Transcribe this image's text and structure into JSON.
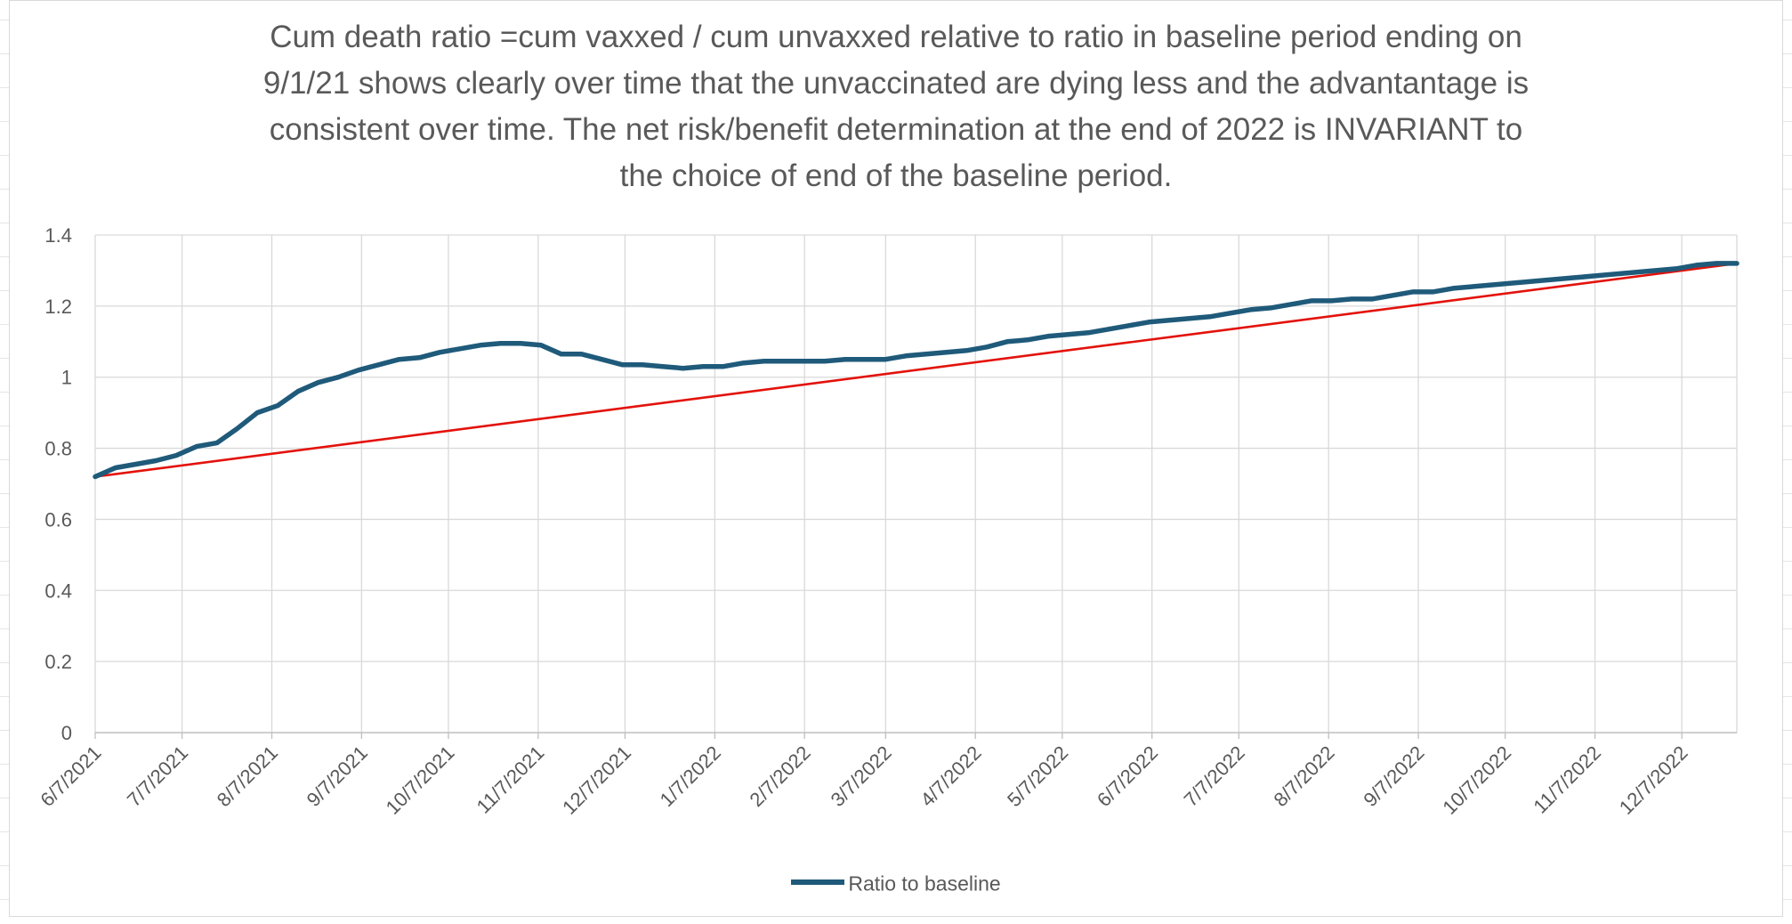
{
  "chart_data": {
    "type": "line",
    "title": "Cum death ratio =cum vaxxed / cum unvaxxed relative to ratio in baseline period ending on 9/1/21 shows clearly over time that the unvaccinated are dying less and the advantantage is consistent over time. The net risk/benefit determination at the end of 2022 is INVARIANT to the choice of end of the baseline period.",
    "title_lines": [
      "Cum death ratio =cum vaxxed / cum unvaxxed relative to ratio in baseline period ending on",
      "9/1/21 shows clearly over time that the unvaccinated are dying less and the advantantage is",
      "consistent over time. The net risk/benefit determination at the end of 2022 is INVARIANT to",
      "the choice of end of the baseline period."
    ],
    "xlabel": "",
    "ylabel": "",
    "ylim": [
      0,
      1.4
    ],
    "y_ticks": [
      "0",
      "0.2",
      "0.4",
      "0.6",
      "0.8",
      "1",
      "1.2",
      "1.4"
    ],
    "y_tick_values": [
      0,
      0.2,
      0.4,
      0.6,
      0.8,
      1.0,
      1.2,
      1.4
    ],
    "x_range": [
      "2021-06-07",
      "2022-12-26"
    ],
    "x_ticks": [
      "6/7/2021",
      "7/7/2021",
      "8/7/2021",
      "9/7/2021",
      "10/7/2021",
      "11/7/2021",
      "12/7/2021",
      "1/7/2022",
      "2/7/2022",
      "3/7/2022",
      "4/7/2022",
      "5/7/2022",
      "6/7/2022",
      "7/7/2022",
      "8/7/2022",
      "9/7/2022",
      "10/7/2022",
      "11/7/2022",
      "12/7/2022"
    ],
    "x_tick_dates": [
      "2021-06-07",
      "2021-07-07",
      "2021-08-07",
      "2021-09-07",
      "2021-10-07",
      "2021-11-07",
      "2021-12-07",
      "2022-01-07",
      "2022-02-07",
      "2022-03-07",
      "2022-04-07",
      "2022-05-07",
      "2022-06-07",
      "2022-07-07",
      "2022-08-07",
      "2022-09-07",
      "2022-10-07",
      "2022-11-07",
      "2022-12-07"
    ],
    "grid": true,
    "legend_position": "bottom",
    "series": [
      {
        "name": "Ratio to baseline",
        "color": "#1f5a7a",
        "points": [
          [
            "2021-06-07",
            0.72
          ],
          [
            "2021-06-14",
            0.745
          ],
          [
            "2021-06-21",
            0.755
          ],
          [
            "2021-06-28",
            0.765
          ],
          [
            "2021-07-05",
            0.78
          ],
          [
            "2021-07-12",
            0.805
          ],
          [
            "2021-07-19",
            0.815
          ],
          [
            "2021-07-26",
            0.855
          ],
          [
            "2021-08-02",
            0.9
          ],
          [
            "2021-08-09",
            0.92
          ],
          [
            "2021-08-16",
            0.96
          ],
          [
            "2021-08-23",
            0.985
          ],
          [
            "2021-08-30",
            1.0
          ],
          [
            "2021-09-06",
            1.02
          ],
          [
            "2021-09-13",
            1.035
          ],
          [
            "2021-09-20",
            1.05
          ],
          [
            "2021-09-27",
            1.055
          ],
          [
            "2021-10-04",
            1.07
          ],
          [
            "2021-10-11",
            1.08
          ],
          [
            "2021-10-18",
            1.09
          ],
          [
            "2021-10-25",
            1.095
          ],
          [
            "2021-11-01",
            1.095
          ],
          [
            "2021-11-08",
            1.09
          ],
          [
            "2021-11-15",
            1.065
          ],
          [
            "2021-11-22",
            1.065
          ],
          [
            "2021-11-29",
            1.05
          ],
          [
            "2021-12-06",
            1.035
          ],
          [
            "2021-12-13",
            1.035
          ],
          [
            "2021-12-20",
            1.03
          ],
          [
            "2021-12-27",
            1.025
          ],
          [
            "2022-01-03",
            1.03
          ],
          [
            "2022-01-10",
            1.03
          ],
          [
            "2022-01-17",
            1.04
          ],
          [
            "2022-01-24",
            1.045
          ],
          [
            "2022-01-31",
            1.045
          ],
          [
            "2022-02-07",
            1.045
          ],
          [
            "2022-02-14",
            1.045
          ],
          [
            "2022-02-21",
            1.05
          ],
          [
            "2022-02-28",
            1.05
          ],
          [
            "2022-03-07",
            1.05
          ],
          [
            "2022-03-14",
            1.06
          ],
          [
            "2022-03-21",
            1.065
          ],
          [
            "2022-03-28",
            1.07
          ],
          [
            "2022-04-04",
            1.075
          ],
          [
            "2022-04-11",
            1.085
          ],
          [
            "2022-04-18",
            1.1
          ],
          [
            "2022-04-25",
            1.105
          ],
          [
            "2022-05-02",
            1.115
          ],
          [
            "2022-05-09",
            1.12
          ],
          [
            "2022-05-16",
            1.125
          ],
          [
            "2022-05-23",
            1.135
          ],
          [
            "2022-05-30",
            1.145
          ],
          [
            "2022-06-06",
            1.155
          ],
          [
            "2022-06-13",
            1.16
          ],
          [
            "2022-06-20",
            1.165
          ],
          [
            "2022-06-27",
            1.17
          ],
          [
            "2022-07-04",
            1.18
          ],
          [
            "2022-07-11",
            1.19
          ],
          [
            "2022-07-18",
            1.195
          ],
          [
            "2022-07-25",
            1.205
          ],
          [
            "2022-08-01",
            1.215
          ],
          [
            "2022-08-08",
            1.215
          ],
          [
            "2022-08-15",
            1.22
          ],
          [
            "2022-08-22",
            1.22
          ],
          [
            "2022-08-29",
            1.23
          ],
          [
            "2022-09-05",
            1.24
          ],
          [
            "2022-09-12",
            1.24
          ],
          [
            "2022-09-19",
            1.25
          ],
          [
            "2022-09-26",
            1.255
          ],
          [
            "2022-10-03",
            1.26
          ],
          [
            "2022-10-10",
            1.265
          ],
          [
            "2022-10-17",
            1.27
          ],
          [
            "2022-10-24",
            1.275
          ],
          [
            "2022-10-31",
            1.28
          ],
          [
            "2022-11-07",
            1.285
          ],
          [
            "2022-11-14",
            1.29
          ],
          [
            "2022-11-21",
            1.295
          ],
          [
            "2022-11-28",
            1.3
          ],
          [
            "2022-12-05",
            1.305
          ],
          [
            "2022-12-12",
            1.315
          ],
          [
            "2022-12-19",
            1.32
          ],
          [
            "2022-12-26",
            1.32
          ]
        ]
      }
    ],
    "annotations": [
      {
        "type": "trendline",
        "color": "#e3120b",
        "start": [
          "2021-06-07",
          0.72
        ],
        "end": [
          "2022-12-26",
          1.32
        ]
      }
    ]
  }
}
